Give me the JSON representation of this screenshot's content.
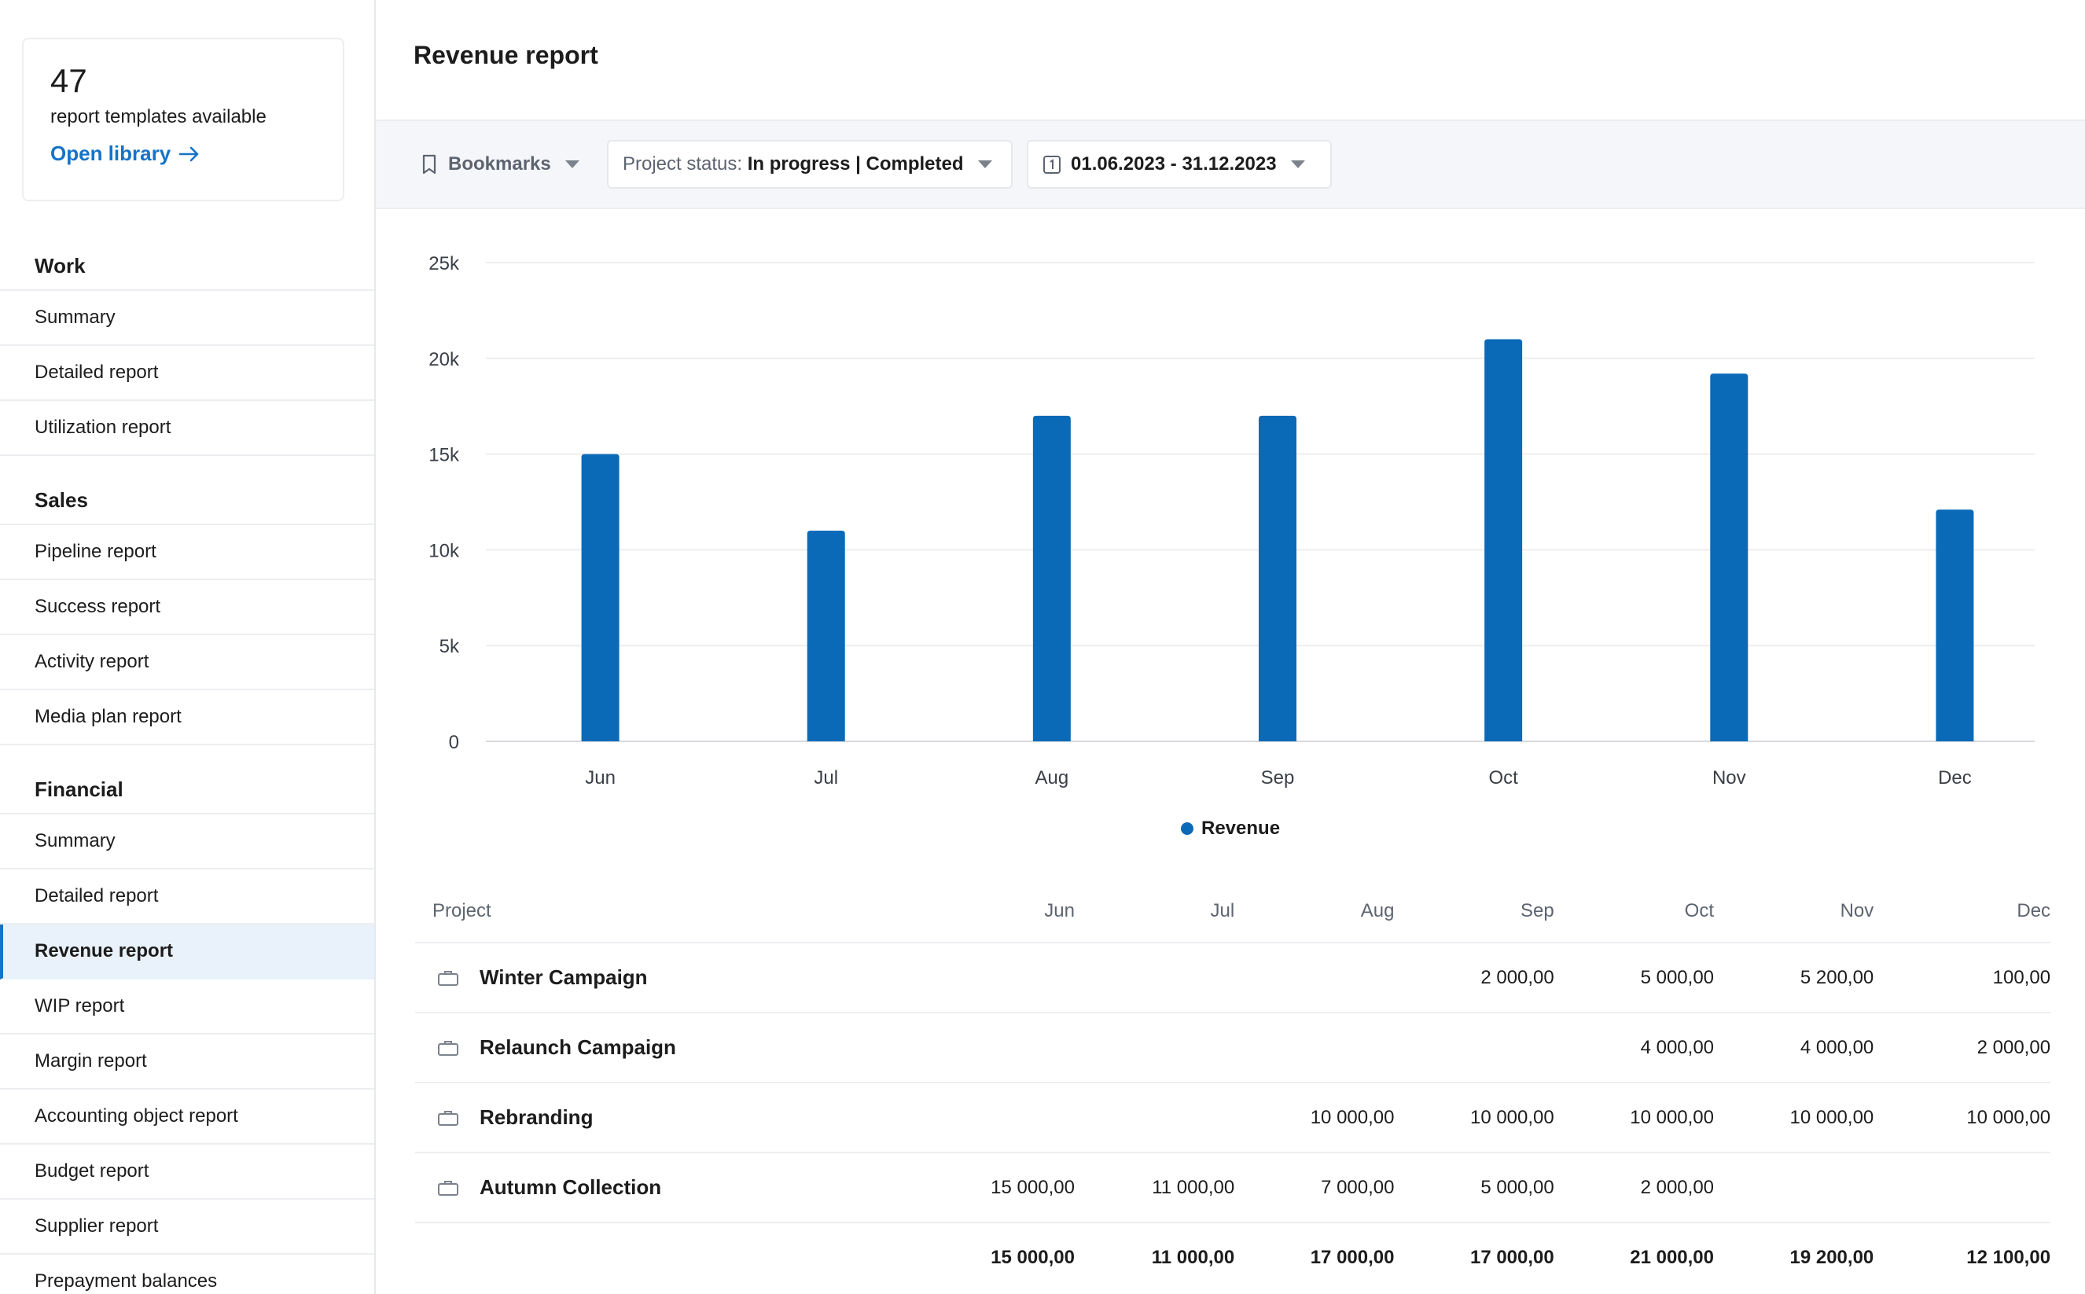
{
  "library": {
    "count": "47",
    "text": "report templates available",
    "link_label": "Open library"
  },
  "sidebar": {
    "sections": [
      {
        "title": "Work",
        "items": [
          "Summary",
          "Detailed report",
          "Utilization report"
        ]
      },
      {
        "title": "Sales",
        "items": [
          "Pipeline report",
          "Success report",
          "Activity report",
          "Media plan report"
        ]
      },
      {
        "title": "Financial",
        "items": [
          "Summary",
          "Detailed report",
          "Revenue report",
          "WIP report",
          "Margin report",
          "Accounting object report",
          "Budget report",
          "Supplier report",
          "Prepayment balances"
        ]
      }
    ],
    "active": "Revenue report"
  },
  "page": {
    "title": "Revenue report"
  },
  "filters": {
    "bookmarks_label": "Bookmarks",
    "status_label": "Project status:",
    "status_value": "In progress | Completed",
    "date_range": "01.06.2023 - 31.12.2023"
  },
  "chart_data": {
    "type": "bar",
    "categories": [
      "Jun",
      "Jul",
      "Aug",
      "Sep",
      "Oct",
      "Nov",
      "Dec"
    ],
    "series": [
      {
        "name": "Revenue",
        "values": [
          15000,
          11000,
          17000,
          17000,
          21000,
          19200,
          12100
        ],
        "color": "#0a6ab8"
      }
    ],
    "ylim": [
      0,
      25000
    ],
    "y_ticks": [
      "0",
      "5k",
      "10k",
      "15k",
      "20k",
      "25k"
    ],
    "y_tick_values": [
      0,
      5000,
      10000,
      15000,
      20000,
      25000
    ],
    "grid": true,
    "legend_position": "bottom-center"
  },
  "table": {
    "headers": [
      "Project",
      "Jun",
      "Jul",
      "Aug",
      "Sep",
      "Oct",
      "Nov",
      "Dec"
    ],
    "rows": [
      {
        "project": "Winter Campaign",
        "values": [
          "",
          "",
          "",
          "2 000,00",
          "5 000,00",
          "5 200,00",
          "100,00"
        ]
      },
      {
        "project": "Relaunch Campaign",
        "values": [
          "",
          "",
          "",
          "",
          "4 000,00",
          "4 000,00",
          "2 000,00"
        ]
      },
      {
        "project": "Rebranding",
        "values": [
          "",
          "",
          "10 000,00",
          "10 000,00",
          "10 000,00",
          "10 000,00",
          "10 000,00"
        ]
      },
      {
        "project": "Autumn Collection",
        "values": [
          "15 000,00",
          "11 000,00",
          "7 000,00",
          "5 000,00",
          "2 000,00",
          "",
          ""
        ]
      }
    ],
    "totals": [
      "15 000,00",
      "11 000,00",
      "17 000,00",
      "17 000,00",
      "21 000,00",
      "19 200,00",
      "12 100,00"
    ]
  },
  "colors": {
    "accent": "#1673c8",
    "bar": "#0a6ab8",
    "active_bg": "#e9f2fb"
  }
}
